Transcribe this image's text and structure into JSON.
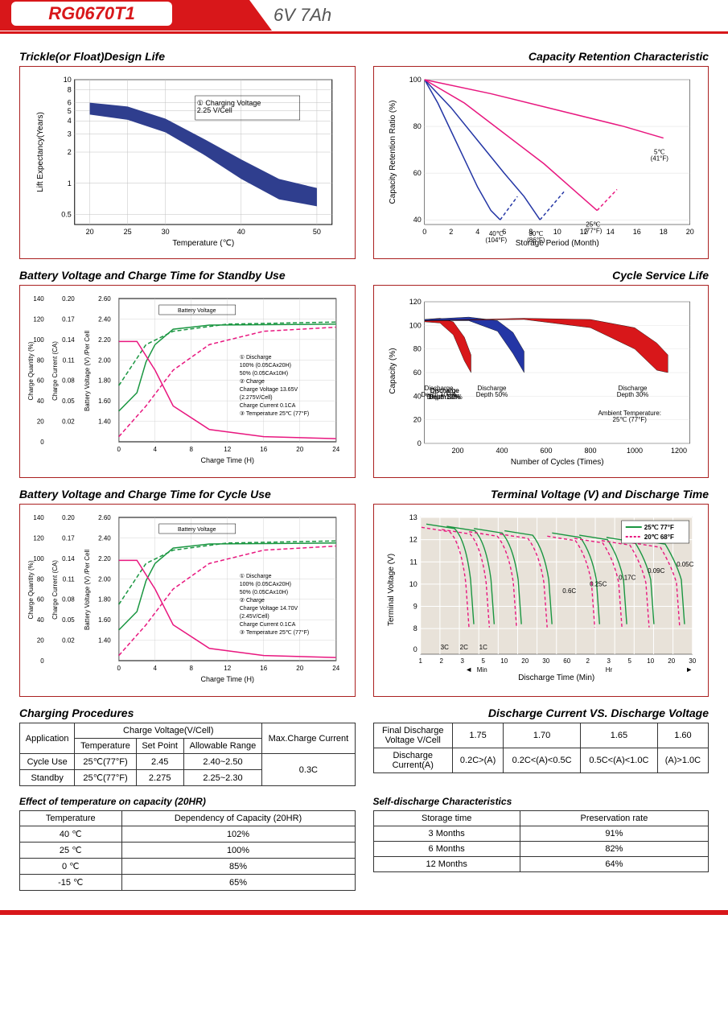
{
  "header": {
    "model": "RG0670T1",
    "spec": "6V  7Ah"
  },
  "panels": {
    "trickle": {
      "title": "Trickle(or Float)Design Life",
      "ylabel": "Lift  Expectancy(Years)",
      "xlabel": "Temperature (℃)",
      "legend": "① Charging Voltage\n2.25 V/Cell",
      "yticks": [
        "10",
        "8",
        "6",
        "5",
        "4",
        "3",
        "2",
        "1",
        "0.5"
      ],
      "xticks": [
        "20",
        "25",
        "30",
        "40",
        "50"
      ],
      "band": [
        [
          20,
          6,
          4.6
        ],
        [
          25,
          5.5,
          4.1
        ],
        [
          30,
          4.2,
          3.1
        ],
        [
          35,
          2.7,
          1.9
        ],
        [
          40,
          1.7,
          1.1
        ],
        [
          45,
          1.1,
          0.7
        ],
        [
          50,
          0.9,
          0.6
        ]
      ],
      "colors": {
        "band": "#2f3e8e",
        "grid": "#bdbdbd",
        "axis": "#000"
      }
    },
    "capacity": {
      "title": "Capacity  Retention  Characteristic",
      "ylabel": "Capacity Retention Ratio (%)",
      "xlabel": "Storage Period (Month)",
      "yticks": [
        "100",
        "80",
        "60",
        "40"
      ],
      "xticks": [
        "0",
        "2",
        "4",
        "6",
        "8",
        "10",
        "12",
        "14",
        "16",
        "18",
        "20"
      ],
      "series": [
        {
          "label": "40℃\n(104°F)",
          "color": "#2436a5",
          "pts": [
            [
              0,
              100
            ],
            [
              1,
              90
            ],
            [
              2,
              78
            ],
            [
              3,
              66
            ],
            [
              4,
              54
            ],
            [
              5,
              44
            ],
            [
              5.7,
              40
            ]
          ],
          "dash": false
        },
        {
          "label": "30℃\n(86°F)",
          "color": "#2436a5",
          "pts": [
            [
              0,
              100
            ],
            [
              2,
              88
            ],
            [
              4,
              74
            ],
            [
              6,
              60
            ],
            [
              7.5,
              50
            ],
            [
              8.7,
              40
            ]
          ],
          "dash": false
        },
        {
          "label": "25℃\n(77°F)",
          "color": "#e8177f",
          "pts": [
            [
              0,
              100
            ],
            [
              3,
              90
            ],
            [
              6,
              77
            ],
            [
              9,
              64
            ],
            [
              11,
              54
            ],
            [
              13,
              44
            ]
          ],
          "dash": false
        },
        {
          "label": "5℃\n(41°F)",
          "color": "#e8177f",
          "pts": [
            [
              0,
              100
            ],
            [
              5,
              94
            ],
            [
              10,
              87
            ],
            [
              15,
              80
            ],
            [
              18,
              75
            ]
          ],
          "dash": false
        },
        {
          "label": "",
          "color": "#2436a5",
          "pts": [
            [
              5.7,
              40
            ],
            [
              7,
              50
            ]
          ],
          "dash": true
        },
        {
          "label": "",
          "color": "#2436a5",
          "pts": [
            [
              8.7,
              40
            ],
            [
              10.5,
              52
            ]
          ],
          "dash": true
        },
        {
          "label": "",
          "color": "#e8177f",
          "pts": [
            [
              13,
              44
            ],
            [
              14.5,
              53
            ]
          ],
          "dash": true
        }
      ]
    },
    "standby": {
      "title": "Battery Voltage and Charge Time for Standby Use",
      "y1": "Charge Quantity (%)",
      "y2": "Charge Current (CA)",
      "y3": "Battery Voltage (V) /Per Cell",
      "xlabel": "Charge Time (H)",
      "y1ticks": [
        "140",
        "120",
        "100",
        "80",
        "60",
        "40",
        "20",
        "0"
      ],
      "y2ticks": [
        "0.20",
        "0.17",
        "0.14",
        "0.11",
        "0.08",
        "0.05",
        "0.02"
      ],
      "y3ticks": [
        "2.60",
        "2.40",
        "2.20",
        "2.00",
        "1.80",
        "1.60",
        "1.40"
      ],
      "xticks": [
        "0",
        "4",
        "8",
        "12",
        "16",
        "20",
        "24"
      ],
      "anno": [
        "① Discharge",
        "   100% (0.05CAx20H)",
        "   50% (0.05CAx10H)",
        "② Charge",
        "   Charge Voltage 13.65V",
        "   (2.275V/Cell)",
        "   Charge Current 0.1CA",
        "③ Temperature 25℃ (77°F)"
      ],
      "bv": "Battery Voltage",
      "cq": "Charge Quantity (to-Discharge Quantity) Ratio",
      "cc": "Charge Current"
    },
    "cycle": {
      "title": "Cycle Service Life",
      "ylabel": "Capacity (%)",
      "xlabel": "Number of Cycles (Times)",
      "yticks": [
        "120",
        "100",
        "80",
        "60",
        "40",
        "20",
        "0"
      ],
      "xticks": [
        "200",
        "400",
        "600",
        "800",
        "1000",
        "1200"
      ],
      "amb": "Ambient Temperature:\n25℃ (77°F)",
      "bands": [
        {
          "label": "Discharge\nDepth 100%",
          "color": "#d8171a",
          "pts": [
            [
              50,
              105,
              103
            ],
            [
              120,
              106,
              102
            ],
            [
              180,
              103,
              92
            ],
            [
              230,
              90,
              70
            ],
            [
              260,
              75,
              60
            ]
          ]
        },
        {
          "label": "Discharge\nDepth 50%",
          "color": "#2436a5",
          "pts": [
            [
              50,
              105,
              104
            ],
            [
              250,
              107,
              104
            ],
            [
              380,
              104,
              95
            ],
            [
              450,
              94,
              76
            ],
            [
              500,
              78,
              60
            ]
          ]
        },
        {
          "label": "Discharge\nDepth 30%",
          "color": "#d8171a",
          "pts": [
            [
              50,
              104,
              104
            ],
            [
              500,
              106,
              105
            ],
            [
              800,
              105,
              98
            ],
            [
              1000,
              98,
              80
            ],
            [
              1100,
              85,
              62
            ],
            [
              1150,
              75,
              60
            ]
          ]
        }
      ]
    },
    "cycle_use": {
      "title": "Battery Voltage and Charge Time for Cycle Use",
      "anno": [
        "① Discharge",
        "   100% (0.05CAx20H)",
        "   50% (0.05CAx10H)",
        "② Charge",
        "   Charge Voltage 14.70V",
        "   (2.45V/Cell)",
        "   Charge Current 0.1CA",
        "③ Temperature 25℃ (77°F)"
      ]
    },
    "terminal": {
      "title": "Terminal Voltage (V) and Discharge Time",
      "ylabel": "Terminal Voltage (V)",
      "xlabel": "Discharge Time (Min)",
      "legend": [
        "25℃ 77°F",
        "20℃ 68°F"
      ],
      "yticks": [
        "13",
        "12",
        "11",
        "10",
        "9",
        "8",
        "0"
      ],
      "xvals": [
        "1",
        "2",
        "3",
        "5",
        "10",
        "20",
        "30",
        "60",
        "2",
        "3",
        "5",
        "10",
        "20",
        "30"
      ],
      "xsub": [
        "Min",
        "Hr"
      ],
      "curves": [
        "3C",
        "2C",
        "1C",
        "0.6C",
        "0.25C",
        "0.17C",
        "0.09C",
        "0.05C"
      ]
    }
  },
  "tables": {
    "charging": {
      "title": "Charging Procedures",
      "h1": "Application",
      "h2": "Charge Voltage(V/Cell)",
      "h3": "Max.Charge Current",
      "sub": [
        "Temperature",
        "Set Point",
        "Allowable Range"
      ],
      "rows": [
        [
          "Cycle Use",
          "25℃(77°F)",
          "2.45",
          "2.40~2.50"
        ],
        [
          "Standby",
          "25℃(77°F)",
          "2.275",
          "2.25~2.30"
        ]
      ],
      "max": "0.3C"
    },
    "discharge": {
      "title": "Discharge Current VS. Discharge Voltage",
      "r1h": "Final Discharge\nVoltage V/Cell",
      "r1": [
        "1.75",
        "1.70",
        "1.65",
        "1.60"
      ],
      "r2h": "Discharge\nCurrent(A)",
      "r2": [
        "0.2C>(A)",
        "0.2C<(A)<0.5C",
        "0.5C<(A)<1.0C",
        "(A)>1.0C"
      ]
    },
    "temp_effect": {
      "title": "Effect of temperature on capacity (20HR)",
      "cols": [
        "Temperature",
        "Dependency of Capacity (20HR)"
      ],
      "rows": [
        [
          "40 ℃",
          "102%"
        ],
        [
          "25 ℃",
          "100%"
        ],
        [
          "0 ℃",
          "85%"
        ],
        [
          "-15 ℃",
          "65%"
        ]
      ]
    },
    "self_discharge": {
      "title": "Self-discharge Characteristics",
      "cols": [
        "Storage time",
        "Preservation rate"
      ],
      "rows": [
        [
          "3 Months",
          "91%"
        ],
        [
          "6 Months",
          "82%"
        ],
        [
          "12 Months",
          "64%"
        ]
      ]
    }
  }
}
